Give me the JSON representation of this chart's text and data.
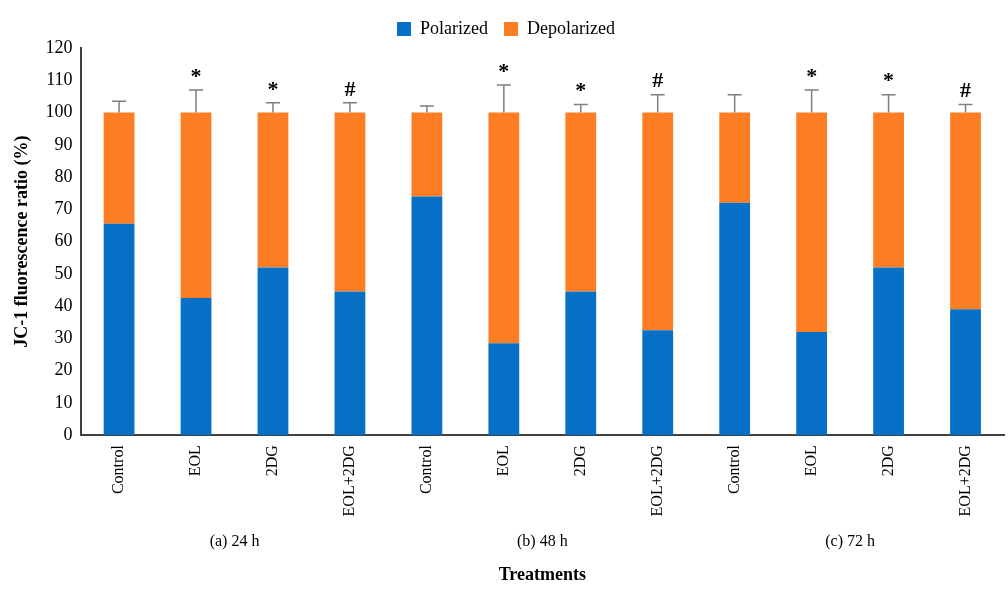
{
  "chart_data": {
    "type": "bar",
    "stacked": true,
    "ylabel": "JC-1 fluorescence ratio (%)",
    "xlabel": "Treatments",
    "categories": [
      "Control",
      "EOL",
      "2DG",
      "EOL+2DG",
      "Control",
      "EOL",
      "2DG",
      "EOL+2DG",
      "Control",
      "EOL",
      "2DG",
      "EOL+2DG"
    ],
    "series": [
      {
        "name": "Polarized",
        "color": "#0570c6",
        "values": [
          65.5,
          42.5,
          52,
          44.5,
          74,
          28.5,
          44.5,
          32.5,
          72,
          32,
          52,
          39
        ]
      },
      {
        "name": "Depolarized",
        "color": "#fd7e22",
        "values": [
          34.5,
          57.5,
          48,
          55.5,
          26,
          71.5,
          55.5,
          67.5,
          28,
          68,
          48,
          61
        ],
        "errors": [
          [
            100,
            103.5
          ],
          [
            100,
            107
          ],
          [
            100,
            103
          ],
          [
            100,
            103
          ],
          [
            100,
            102
          ],
          [
            100,
            108.5
          ],
          [
            100,
            102.5
          ],
          [
            100,
            105.5
          ],
          [
            100,
            105.5
          ],
          [
            100,
            107
          ],
          [
            100,
            105.5
          ],
          [
            100,
            102.5
          ]
        ],
        "value_labels": [
          null,
          "*",
          "*",
          "#",
          null,
          "*",
          "*",
          "#",
          null,
          "*",
          "*",
          "#"
        ]
      }
    ],
    "ylim": [
      0,
      120
    ],
    "yticks": [
      0,
      10,
      20,
      30,
      40,
      50,
      60,
      70,
      80,
      90,
      100,
      110,
      120
    ],
    "grid": false,
    "legend": "top",
    "annotations": [
      "(a) 24 h",
      "(b) 48 h",
      "(c) 72 h"
    ]
  }
}
